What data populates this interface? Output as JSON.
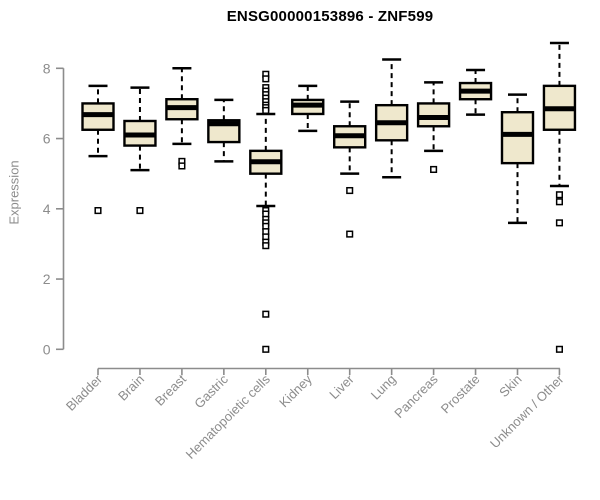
{
  "chart": {
    "title": "ENSG00000153896 - ZNF599",
    "ylabel": "Expression"
  },
  "chart_data": {
    "type": "boxplot",
    "title": "ENSG00000153896 - ZNF599",
    "xlabel": "",
    "ylabel": "Expression",
    "ylim": [
      0,
      8.8
    ],
    "yticks": [
      0,
      2,
      4,
      6,
      8
    ],
    "grid": false,
    "legend": false,
    "categories": [
      "Bladder",
      "Brain",
      "Breast",
      "Gastric",
      "Hematopoietic cells",
      "Kidney",
      "Liver",
      "Lung",
      "Pancreas",
      "Prostate",
      "Skin",
      "Unknown / Other"
    ],
    "boxes": [
      {
        "category": "Bladder",
        "low": 5.5,
        "q1": 6.25,
        "median": 6.68,
        "q3": 7.0,
        "high": 7.5,
        "outliers": [
          3.95
        ]
      },
      {
        "category": "Brain",
        "low": 5.1,
        "q1": 5.8,
        "median": 6.1,
        "q3": 6.5,
        "high": 7.45,
        "outliers": [
          3.95
        ]
      },
      {
        "category": "Breast",
        "low": 5.85,
        "q1": 6.55,
        "median": 6.88,
        "q3": 7.12,
        "high": 8.0,
        "outliers": [
          5.35,
          5.22
        ]
      },
      {
        "category": "Gastric",
        "low": 5.35,
        "q1": 5.9,
        "median": 6.42,
        "q3": 6.52,
        "high": 7.1,
        "outliers": []
      },
      {
        "category": "Hematopoietic cells",
        "low": 4.08,
        "q1": 5.0,
        "median": 5.34,
        "q3": 5.65,
        "high": 6.7,
        "outliers": [
          7.83,
          7.7,
          7.45,
          7.35,
          7.25,
          7.15,
          7.05,
          6.95,
          6.88,
          6.8,
          3.95,
          3.85,
          3.7,
          3.6,
          3.5,
          3.35,
          3.2,
          3.05,
          2.95,
          1.0,
          0.0
        ]
      },
      {
        "category": "Kidney",
        "low": 6.22,
        "q1": 6.7,
        "median": 6.95,
        "q3": 7.1,
        "high": 7.5,
        "outliers": []
      },
      {
        "category": "Liver",
        "low": 5.0,
        "q1": 5.75,
        "median": 6.08,
        "q3": 6.35,
        "high": 7.05,
        "outliers": [
          4.52,
          3.28
        ]
      },
      {
        "category": "Lung",
        "low": 4.9,
        "q1": 5.95,
        "median": 6.45,
        "q3": 6.95,
        "high": 8.25,
        "outliers": []
      },
      {
        "category": "Pancreas",
        "low": 5.65,
        "q1": 6.35,
        "median": 6.6,
        "q3": 7.0,
        "high": 7.6,
        "outliers": [
          5.12
        ]
      },
      {
        "category": "Prostate",
        "low": 6.68,
        "q1": 7.12,
        "median": 7.35,
        "q3": 7.58,
        "high": 7.95,
        "outliers": []
      },
      {
        "category": "Skin",
        "low": 3.6,
        "q1": 5.3,
        "median": 6.12,
        "q3": 6.75,
        "high": 7.25,
        "outliers": []
      },
      {
        "category": "Unknown / Other",
        "low": 4.65,
        "q1": 6.25,
        "median": 6.85,
        "q3": 7.5,
        "high": 8.72,
        "outliers": [
          4.4,
          4.2,
          3.6,
          0.0
        ]
      }
    ],
    "colors": {
      "box_fill": "#EFE8CD",
      "box_border": "#000000",
      "median": "#000000",
      "whisker": "#000000",
      "outlier_fill": "#FFFFFF",
      "outlier_border": "#000000",
      "axis": "#8C8C8C",
      "title": "#000000",
      "background": "#FFFFFF"
    }
  }
}
